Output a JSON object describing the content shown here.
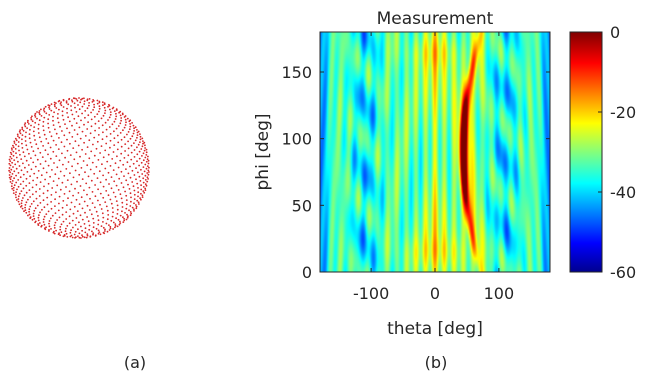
{
  "panels": {
    "a_label": "(a)",
    "b_label": "(b)"
  },
  "sphere": {
    "point_color": "#d62728"
  },
  "chart_data": {
    "type": "heatmap",
    "title": "Measurement",
    "xlabel": "theta [deg]",
    "ylabel": "phi [deg]",
    "xlim": [
      -180,
      180
    ],
    "ylim": [
      0,
      180
    ],
    "xticks": [
      -100,
      0,
      100
    ],
    "yticks": [
      0,
      50,
      100,
      150
    ],
    "colorbar": {
      "lim": [
        -60,
        0
      ],
      "ticks": [
        0,
        -20,
        -40,
        -60
      ],
      "colormap": "jet"
    },
    "main_beam": {
      "theta_center": 45,
      "phi_center": 90,
      "peak_db": 0,
      "description_values": {
        "theta_at_phi_0": 72,
        "theta_at_phi_90": 45,
        "theta_at_phi_180": 72
      }
    },
    "colors": {
      "colormap_stops": [
        "#00008f",
        "#0000ff",
        "#00ffff",
        "#ffff00",
        "#ff0000",
        "#800000"
      ]
    }
  }
}
